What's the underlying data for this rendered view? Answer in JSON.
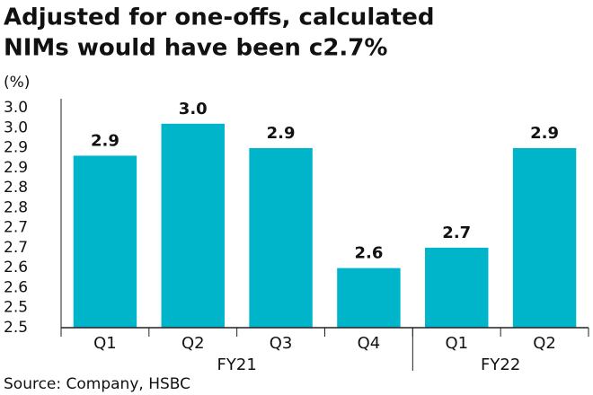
{
  "chart_data": {
    "type": "bar",
    "title_lines": [
      "Adjusted for one-offs, calculated",
      "NIMs would have been c2.7%"
    ],
    "y_label": "(%)",
    "categories": [
      "Q1",
      "Q2",
      "Q3",
      "Q4",
      "Q1",
      "Q2"
    ],
    "groups": [
      {
        "name": "FY21",
        "count": 4
      },
      {
        "name": "FY22",
        "count": 2
      }
    ],
    "values": [
      2.93,
      3.01,
      2.949,
      2.649,
      2.7,
      2.949
    ],
    "value_labels": [
      "2.9",
      "3.0",
      "2.9",
      "2.6",
      "2.7",
      "2.9"
    ],
    "color": "#00b5c9",
    "ylim": [
      2.5,
      3.05
    ],
    "yticks": [
      2.5,
      {
        "value": 2.55,
        "label": "2.5"
      },
      2.6,
      {
        "value": 2.65,
        "label": "2.6"
      },
      2.7,
      {
        "value": 2.75,
        "label": "2.7"
      },
      2.8,
      {
        "value": 2.85,
        "label": "2.8"
      },
      2.9,
      {
        "value": 2.95,
        "label": "2.9"
      },
      {
        "value": 3,
        "label": "3.0"
      },
      {
        "value": 3.05,
        "label": "3.0"
      }
    ],
    "source": "Source: Company, HSBC"
  }
}
